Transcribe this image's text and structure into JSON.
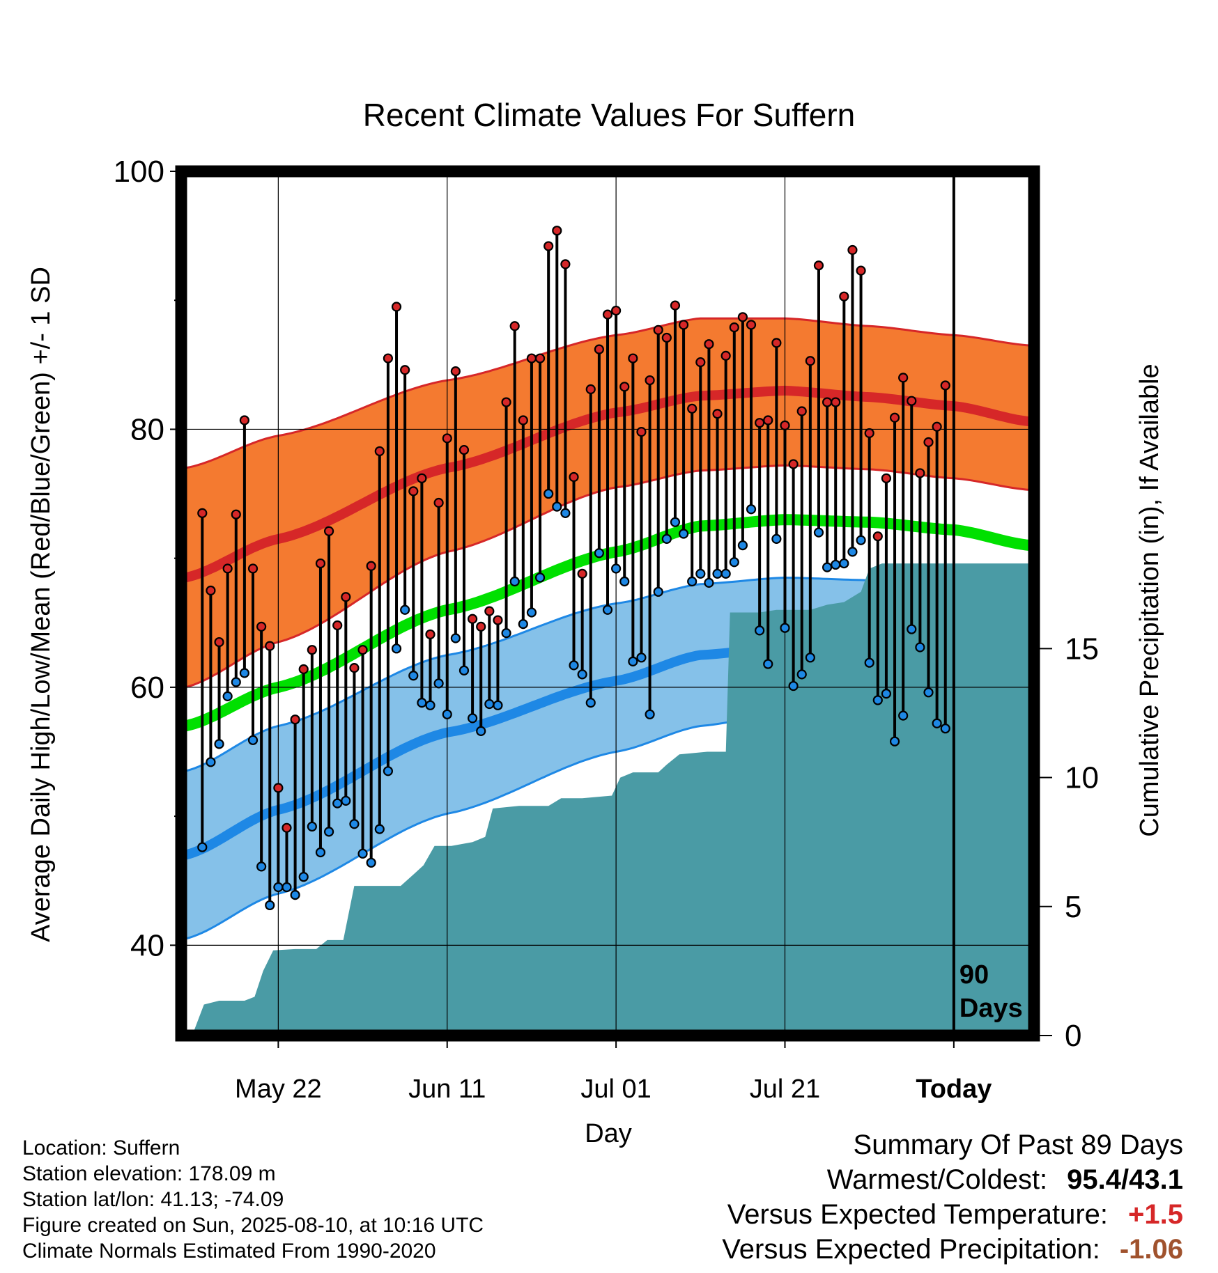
{
  "chart_data": {
    "type": "line",
    "title": "Recent Climate Values For Suffern",
    "xlabel": "Day",
    "ylabel": "Average Daily High/Low/Mean (Red/Blue/Green) +/- 1 SD",
    "y2label": "Cumulative Precipitation (in), If Available",
    "ylim": [
      33,
      100
    ],
    "y2lim": [
      0,
      33.5
    ],
    "y_ticks": [
      "100",
      "80",
      "60",
      "40"
    ],
    "y2_ticks": [
      "15",
      "10",
      "5",
      "0"
    ],
    "x_tick_labels": [
      "May 22",
      "Jun 11",
      "Jul 01",
      "Jul 21",
      "Today"
    ],
    "x_tick_days": [
      -80,
      -60,
      -40,
      -20,
      0
    ],
    "xlim": [
      -91.5,
      9.5
    ],
    "marker_label": "90 Days",
    "normals": {
      "days": [
        -91,
        -80,
        -60,
        -40,
        -30,
        -20,
        -10,
        0,
        9
      ],
      "high_mean": [
        68.5,
        71.5,
        77.0,
        81.3,
        82.6,
        83.0,
        82.5,
        81.8,
        80.6
      ],
      "high_sd_upper": [
        77.0,
        79.5,
        83.8,
        87.3,
        88.6,
        88.6,
        88.0,
        87.3,
        86.5
      ],
      "high_sd_lower": [
        60.0,
        63.5,
        70.5,
        75.5,
        76.8,
        77.2,
        76.9,
        76.2,
        75.3
      ],
      "mean": [
        57.0,
        60.0,
        66.0,
        70.5,
        72.5,
        73.0,
        72.8,
        72.2,
        71.0
      ],
      "low_mean": [
        47.0,
        50.5,
        56.5,
        60.5,
        62.5,
        63.1,
        63.0,
        62.5,
        61.5
      ],
      "low_sd_upper": [
        53.5,
        57.0,
        62.5,
        66.5,
        68.0,
        68.5,
        68.3,
        67.9,
        67.3
      ],
      "low_sd_lower": [
        40.5,
        44.0,
        50.2,
        55.0,
        57.0,
        58.0,
        57.9,
        57.0,
        56.0
      ]
    },
    "series": [
      {
        "name": "High",
        "color": "#d62728",
        "values": [
          73.5,
          67.5,
          63.5,
          69.2,
          73.4,
          80.7,
          69.2,
          64.7,
          63.2,
          52.2,
          49.1,
          57.5,
          61.4,
          62.9,
          69.6,
          72.1,
          64.8,
          67.0,
          61.5,
          62.9,
          69.4,
          78.3,
          85.5,
          89.5,
          84.6,
          75.2,
          76.2,
          64.1,
          74.3,
          79.3,
          84.5,
          78.4,
          65.3,
          64.7,
          65.9,
          65.2,
          82.1,
          88.0,
          80.7,
          85.5,
          85.5,
          94.2,
          95.4,
          92.8,
          76.3,
          68.8,
          83.1,
          86.2,
          88.9,
          89.2,
          83.3,
          85.5,
          79.8,
          83.8,
          87.7,
          87.1,
          89.6,
          88.1,
          81.6,
          85.2,
          86.6,
          81.2,
          85.7,
          87.9,
          88.7,
          88.1,
          80.5,
          80.7,
          86.7,
          80.3,
          77.3,
          81.4,
          85.3,
          92.7,
          82.1,
          82.1,
          90.3,
          93.9,
          92.3,
          79.7,
          71.7,
          76.2,
          80.9,
          84.0,
          82.2,
          76.6,
          79.0,
          80.2,
          83.4
        ]
      },
      {
        "name": "Low",
        "color": "#1e88e5",
        "values": [
          47.6,
          54.2,
          55.6,
          59.3,
          60.4,
          61.1,
          55.9,
          46.1,
          43.1,
          44.5,
          44.5,
          43.9,
          45.3,
          49.2,
          47.2,
          48.8,
          51.0,
          51.2,
          49.4,
          47.1,
          46.4,
          49.0,
          53.5,
          63.0,
          66.0,
          60.9,
          58.8,
          58.6,
          60.3,
          57.9,
          63.8,
          61.3,
          57.6,
          56.6,
          58.7,
          58.6,
          64.2,
          68.2,
          64.9,
          65.8,
          68.5,
          75.0,
          74.0,
          73.5,
          61.7,
          61.0,
          58.8,
          70.4,
          66.0,
          69.2,
          68.2,
          62.0,
          62.3,
          57.9,
          67.4,
          71.5,
          72.8,
          71.9,
          68.2,
          68.8,
          68.1,
          68.8,
          68.8,
          69.7,
          71.0,
          73.8,
          64.4,
          61.8,
          71.5,
          64.6,
          60.1,
          61.0,
          62.3,
          72.0,
          69.3,
          69.5,
          69.6,
          70.5,
          71.4,
          61.9,
          59.0,
          59.5,
          55.8,
          57.8,
          64.5,
          63.1,
          59.6,
          57.2,
          56.8
        ]
      },
      {
        "name": "Precipitation",
        "color": "#4a9ba5",
        "points": [
          [
            -91.5,
            0
          ],
          [
            -90.2,
            0
          ],
          [
            -88.8,
            1.2
          ],
          [
            -87.0,
            1.35
          ],
          [
            -84.0,
            1.35
          ],
          [
            -82.8,
            1.5
          ],
          [
            -81.8,
            2.5
          ],
          [
            -80.6,
            3.3
          ],
          [
            -78.0,
            3.35
          ],
          [
            -75.5,
            3.35
          ],
          [
            -74.2,
            3.7
          ],
          [
            -72.3,
            3.7
          ],
          [
            -71.0,
            5.8
          ],
          [
            -68.0,
            5.8
          ],
          [
            -65.5,
            5.8
          ],
          [
            -63.8,
            6.3
          ],
          [
            -62.8,
            6.6
          ],
          [
            -61.5,
            7.35
          ],
          [
            -59.5,
            7.35
          ],
          [
            -57.0,
            7.5
          ],
          [
            -55.5,
            7.7
          ],
          [
            -54.6,
            8.8
          ],
          [
            -51.5,
            8.9
          ],
          [
            -48.0,
            8.9
          ],
          [
            -46.5,
            9.2
          ],
          [
            -44.0,
            9.2
          ],
          [
            -40.5,
            9.3
          ],
          [
            -39.5,
            10.0
          ],
          [
            -38.0,
            10.2
          ],
          [
            -35.0,
            10.2
          ],
          [
            -34.0,
            10.5
          ],
          [
            -32.5,
            10.9
          ],
          [
            -29.2,
            11.0
          ],
          [
            -27.0,
            11.0
          ],
          [
            -26.5,
            16.4
          ],
          [
            -23.0,
            16.4
          ],
          [
            -21.0,
            16.5
          ],
          [
            -17.0,
            16.5
          ],
          [
            -15.0,
            16.7
          ],
          [
            -13.0,
            16.8
          ],
          [
            -11.0,
            17.2
          ],
          [
            -10.0,
            18.1
          ],
          [
            -8.5,
            18.3
          ],
          [
            -6.0,
            18.3
          ],
          [
            9.5,
            18.3
          ]
        ]
      }
    ]
  },
  "info": {
    "location": "Location: Suffern",
    "elevation": "Station elevation: 178.09 m",
    "latlon": "Station lat/lon: 41.13; -74.09",
    "created": "Figure created on Sun, 2025-08-10, at 10:16 UTC",
    "normals": "Climate Normals Estimated From 1990-2020"
  },
  "summary": {
    "title": "Summary Of Past 89 Days",
    "warm_cold_label": "Warmest/Coldest:",
    "warm_cold_value": "95.4/43.1",
    "temp_label": "Versus Expected Temperature:",
    "temp_value": "+1.5",
    "temp_color": "#d62728",
    "precip_label": "Versus Expected Precipitation:",
    "precip_value": "-1.06",
    "precip_color": "#a0522d"
  }
}
